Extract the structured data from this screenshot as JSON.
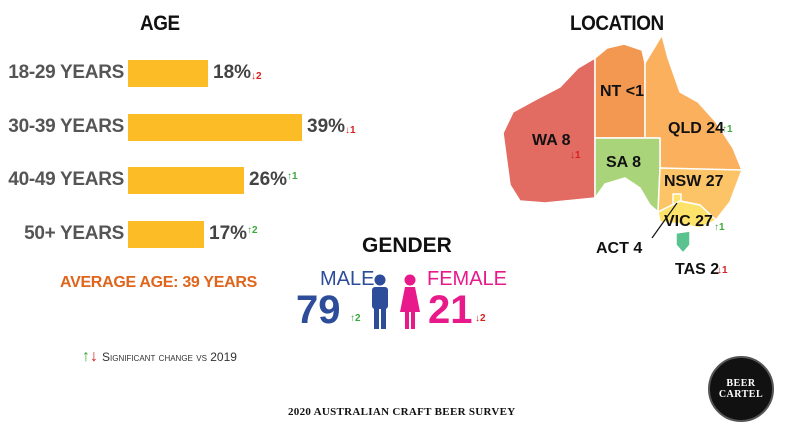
{
  "chart_data": [
    {
      "type": "bar",
      "title": "AGE",
      "categories": [
        "18-29 YEARS",
        "30-39 YEARS",
        "40-49 YEARS",
        "50+ YEARS"
      ],
      "values": [
        18,
        39,
        26,
        17
      ],
      "value_labels": [
        "18%",
        "39%",
        "26%",
        "17%"
      ],
      "changes": [
        {
          "direction": "down",
          "value": "2"
        },
        {
          "direction": "down",
          "value": "1"
        },
        {
          "direction": "up",
          "value": "1"
        },
        {
          "direction": "up",
          "value": "2"
        }
      ],
      "bar_color": "#fbbc25",
      "xlim": [
        0,
        39
      ],
      "annotation": "AVERAGE AGE: 39 YEARS"
    },
    {
      "type": "table",
      "title": "GENDER",
      "categories": [
        "MALE",
        "FEMALE"
      ],
      "values": [
        79,
        21
      ],
      "changes": [
        {
          "direction": "up",
          "value": "2"
        },
        {
          "direction": "down",
          "value": "2"
        }
      ],
      "colors": {
        "male": "#2d4c99",
        "female": "#e8198b"
      }
    },
    {
      "type": "heatmap",
      "title": "LOCATION",
      "regions": [
        {
          "name": "NT",
          "value": "<1",
          "label": "NT <1",
          "color": "#f39851"
        },
        {
          "name": "QLD",
          "value": "24",
          "label": "QLD 24",
          "color": "#fbb05e",
          "change": {
            "direction": "up",
            "value": "1"
          }
        },
        {
          "name": "WA",
          "value": "8",
          "label": "WA 8",
          "color": "#e26b62",
          "change": {
            "direction": "down",
            "value": "1"
          }
        },
        {
          "name": "SA",
          "value": "8",
          "label": "SA 8",
          "color": "#a9d47a"
        },
        {
          "name": "NSW",
          "value": "27",
          "label": "NSW 27",
          "color": "#fcc466"
        },
        {
          "name": "ACT",
          "value": "4",
          "label": "ACT 4",
          "color": "#fde36b"
        },
        {
          "name": "VIC",
          "value": "27",
          "label": "VIC 27",
          "color": "#fde36b",
          "change": {
            "direction": "up",
            "value": "1"
          }
        },
        {
          "name": "TAS",
          "value": "2",
          "label": "TAS 2",
          "color": "#59c28e",
          "change": {
            "direction": "down",
            "value": "1"
          }
        }
      ]
    }
  ],
  "legend": {
    "arrow_up_color": "#3aa93a",
    "arrow_down_color": "#d62020",
    "text": "Significant change vs 2019"
  },
  "footer": "2020 AUSTRALIAN CRAFT BEER SURVEY",
  "logo": {
    "text": "BEER CARTEL"
  },
  "icons": {
    "up": "arrow-up-icon",
    "down": "arrow-down-icon"
  }
}
